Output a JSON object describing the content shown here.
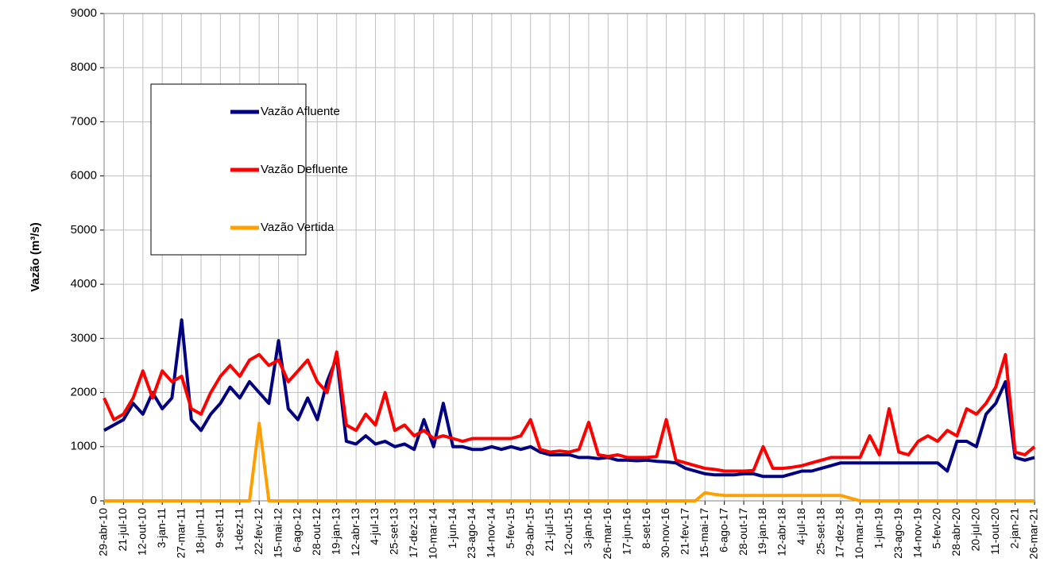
{
  "chart_data": {
    "type": "line",
    "y_label": "Vazão (m³/s)",
    "categories": [
      "29-abr-10",
      null,
      "21-jul-10",
      null,
      "12-out-10",
      null,
      "3-jan-11",
      null,
      "27-mar-11",
      null,
      "18-jun-11",
      null,
      "9-set-11",
      null,
      "1-dez-11",
      null,
      "22-fev-12",
      null,
      "15-mai-12",
      null,
      "6-ago-12",
      null,
      "28-out-12",
      null,
      "19-jan-13",
      null,
      "12-abr-13",
      null,
      "4-jul-13",
      null,
      "25-set-13",
      null,
      "17-dez-13",
      null,
      "10-mar-14",
      null,
      "1-jun-14",
      null,
      "23-ago-14",
      null,
      "14-nov-14",
      null,
      "5-fev-15",
      null,
      "29-abr-15",
      null,
      "21-jul-15",
      null,
      "12-out-15",
      null,
      "3-jan-16",
      null,
      "26-mar-16",
      null,
      "17-jun-16",
      null,
      "8-set-16",
      null,
      "30-nov-16",
      null,
      "21-fev-17",
      null,
      "15-mai-17",
      null,
      "6-ago-17",
      null,
      "28-out-17",
      null,
      "19-jan-18",
      null,
      "12-abr-18",
      null,
      "4-jul-18",
      null,
      "25-set-18",
      null,
      "17-dez-18",
      null,
      "10-mar-19",
      null,
      "1-jun-19",
      null,
      "23-ago-19",
      null,
      "14-nov-19",
      null,
      "5-fev-20",
      null,
      "28-abr-20",
      null,
      "20-jul-20",
      null,
      "11-out-20",
      null,
      "2-jan-21",
      null,
      "26-mar-21"
    ],
    "series": [
      {
        "name": "Vazão Afluente",
        "color": "#000080",
        "values": [
          1300,
          1400,
          1500,
          1800,
          1600,
          2000,
          1700,
          1900,
          3340,
          1500,
          1300,
          1600,
          1800,
          2100,
          1900,
          2200,
          2000,
          1800,
          2960,
          1700,
          1500,
          1900,
          1500,
          2200,
          2650,
          1100,
          1050,
          1200,
          1050,
          1100,
          1000,
          1050,
          950,
          1500,
          1000,
          1800,
          1000,
          1000,
          950,
          950,
          1000,
          950,
          1000,
          950,
          1000,
          900,
          850,
          850,
          850,
          800,
          800,
          780,
          800,
          750,
          750,
          740,
          750,
          730,
          720,
          700,
          600,
          550,
          500,
          480,
          480,
          480,
          500,
          500,
          450,
          450,
          450,
          500,
          550,
          550,
          600,
          650,
          700,
          700,
          700,
          700,
          700,
          700,
          700,
          700,
          700,
          700,
          700,
          550,
          1100,
          1100,
          1000,
          1600,
          1800,
          2200,
          800,
          750,
          800
        ]
      },
      {
        "name": "Vazão Defluente",
        "color": "#ff0000",
        "values": [
          1900,
          1500,
          1600,
          1900,
          2400,
          1900,
          2400,
          2200,
          2300,
          1700,
          1600,
          2000,
          2300,
          2500,
          2300,
          2600,
          2700,
          2500,
          2600,
          2200,
          2400,
          2600,
          2200,
          2000,
          2750,
          1400,
          1300,
          1600,
          1400,
          2000,
          1300,
          1400,
          1200,
          1300,
          1150,
          1200,
          1150,
          1100,
          1150,
          1150,
          1150,
          1150,
          1150,
          1200,
          1500,
          950,
          900,
          920,
          900,
          950,
          1450,
          850,
          820,
          850,
          800,
          800,
          800,
          820,
          1500,
          750,
          700,
          650,
          600,
          580,
          550,
          550,
          550,
          560,
          1000,
          600,
          600,
          620,
          650,
          700,
          750,
          800,
          800,
          800,
          800,
          1200,
          850,
          1700,
          900,
          850,
          1100,
          1200,
          1100,
          1300,
          1200,
          1700,
          1600,
          1800,
          2100,
          2700,
          900,
          850,
          1000
        ]
      },
      {
        "name": "Vazão Vertida",
        "color": "#ffa000",
        "values": [
          0,
          0,
          0,
          0,
          0,
          0,
          0,
          0,
          0,
          0,
          0,
          0,
          0,
          0,
          0,
          0,
          1430,
          0,
          0,
          0,
          0,
          0,
          0,
          0,
          0,
          0,
          0,
          0,
          0,
          0,
          0,
          0,
          0,
          0,
          0,
          0,
          0,
          0,
          0,
          0,
          0,
          0,
          0,
          0,
          0,
          0,
          0,
          0,
          0,
          0,
          0,
          0,
          0,
          0,
          0,
          0,
          0,
          0,
          0,
          0,
          0,
          0,
          150,
          120,
          100,
          100,
          100,
          100,
          100,
          100,
          100,
          100,
          100,
          100,
          100,
          100,
          100,
          50,
          0,
          0,
          0,
          0,
          0,
          0,
          0,
          0,
          0,
          0,
          0,
          0,
          0,
          0,
          0,
          0,
          0,
          0,
          0
        ]
      }
    ],
    "ylim": [
      0,
      9000
    ],
    "yticks": [
      0,
      1000,
      2000,
      3000,
      4000,
      5000,
      6000,
      7000,
      8000,
      9000
    ],
    "grid": true
  }
}
